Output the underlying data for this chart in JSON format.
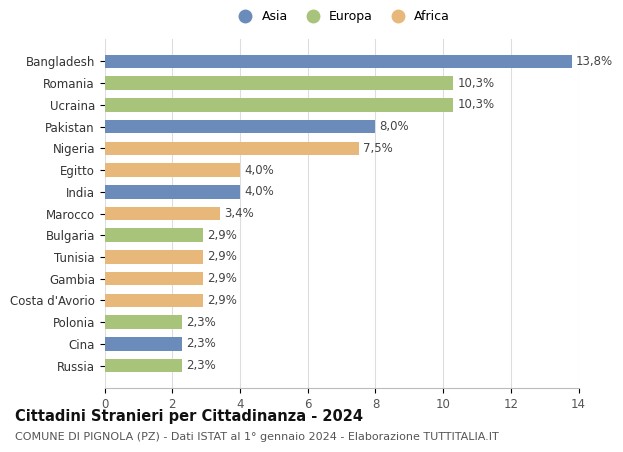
{
  "categories": [
    "Bangladesh",
    "Romania",
    "Ucraina",
    "Pakistan",
    "Nigeria",
    "Egitto",
    "India",
    "Marocco",
    "Bulgaria",
    "Tunisia",
    "Gambia",
    "Costa d'Avorio",
    "Polonia",
    "Cina",
    "Russia"
  ],
  "values": [
    13.8,
    10.3,
    10.3,
    8.0,
    7.5,
    4.0,
    4.0,
    3.4,
    2.9,
    2.9,
    2.9,
    2.9,
    2.3,
    2.3,
    2.3
  ],
  "labels": [
    "13,8%",
    "10,3%",
    "10,3%",
    "8,0%",
    "7,5%",
    "4,0%",
    "4,0%",
    "3,4%",
    "2,9%",
    "2,9%",
    "2,9%",
    "2,9%",
    "2,3%",
    "2,3%",
    "2,3%"
  ],
  "continents": [
    "Asia",
    "Europa",
    "Europa",
    "Asia",
    "Africa",
    "Africa",
    "Asia",
    "Africa",
    "Europa",
    "Africa",
    "Africa",
    "Africa",
    "Europa",
    "Asia",
    "Europa"
  ],
  "colors": {
    "Asia": "#6b8cba",
    "Europa": "#a8c47a",
    "Africa": "#e8b87a"
  },
  "title": "Cittadini Stranieri per Cittadinanza - 2024",
  "subtitle": "COMUNE DI PIGNOLA (PZ) - Dati ISTAT al 1° gennaio 2024 - Elaborazione TUTTITALIA.IT",
  "xlim": [
    0,
    14
  ],
  "xticks": [
    0,
    2,
    4,
    6,
    8,
    10,
    12,
    14
  ],
  "background_color": "#ffffff",
  "grid_color": "#dddddd",
  "bar_height": 0.62,
  "label_fontsize": 8.5,
  "title_fontsize": 10.5,
  "subtitle_fontsize": 8,
  "tick_fontsize": 8.5,
  "ylabel_fontsize": 8.5
}
